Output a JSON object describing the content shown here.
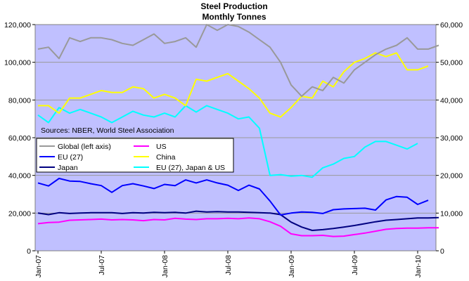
{
  "chart_data": {
    "type": "line",
    "title": "Steel Production",
    "subtitle": "Monthly Tonnes",
    "annotation": "Sources: NBER, World Steel Association",
    "grid": true,
    "left_axis": {
      "ylim": [
        0,
        120000
      ],
      "ticks": [
        "0",
        "20,000",
        "40,000",
        "60,000",
        "80,000",
        "100,000",
        "120,000"
      ]
    },
    "right_axis": {
      "ylim": [
        0,
        60000
      ],
      "ticks": [
        "0",
        "10,000",
        "20,000",
        "30,000",
        "40,000",
        "50,000",
        "60,000"
      ]
    },
    "x_tick_labels": [
      "Jan-07",
      "Jul-07",
      "Jan-08",
      "Jul-08",
      "Jan-09",
      "Jul-09",
      "Jan-10"
    ],
    "x_tick_months": [
      0,
      6,
      12,
      18,
      24,
      30,
      36
    ],
    "x_range_months": [
      0,
      36
    ],
    "background_color": "#c0c0ff",
    "series": [
      {
        "name": "Global (left axis)",
        "axis": "left",
        "color": "#999999",
        "values": [
          107000,
          108000,
          102000,
          113000,
          111000,
          113000,
          113000,
          112000,
          110000,
          109000,
          112000,
          115000,
          110000,
          111000,
          113000,
          108000,
          120000,
          117000,
          120000,
          119000,
          116000,
          112000,
          108000,
          100000,
          88000,
          82000,
          87000,
          85000,
          92000,
          89000,
          96000,
          100000,
          104000,
          107000,
          109000,
          113000,
          107000,
          107000,
          109000
        ]
      },
      {
        "name": "US",
        "axis": "right",
        "color": "#ff00ff",
        "values": [
          7200,
          7500,
          7600,
          8100,
          8200,
          8300,
          8400,
          8200,
          8300,
          8200,
          8000,
          8300,
          8200,
          8600,
          8400,
          8300,
          8500,
          8500,
          8600,
          8500,
          8700,
          8500,
          7700,
          6500,
          4500,
          4000,
          4000,
          4100,
          3800,
          3900,
          4300,
          4700,
          5200,
          5700,
          5900,
          6000,
          6000,
          6100,
          6100
        ]
      },
      {
        "name": "EU (27)",
        "axis": "right",
        "color": "#0000ff",
        "values": [
          18000,
          17200,
          19200,
          18500,
          18400,
          17800,
          17300,
          15500,
          17300,
          17800,
          17200,
          16500,
          17600,
          17300,
          18800,
          18000,
          18800,
          18000,
          17400,
          16000,
          17400,
          16400,
          13200,
          9500,
          10000,
          10300,
          10200,
          9900,
          10900,
          11100,
          11200,
          11300,
          10800,
          13500,
          14400,
          14200,
          12300,
          13400
        ]
      },
      {
        "name": "China",
        "axis": "right",
        "color": "#ffff00",
        "values": [
          38500,
          38500,
          36500,
          40500,
          40500,
          41500,
          42500,
          42000,
          42000,
          43500,
          43000,
          40500,
          41500,
          40500,
          38500,
          45500,
          45000,
          46000,
          47000,
          45000,
          43000,
          40500,
          36500,
          35500,
          38000,
          41000,
          40500,
          45000,
          43500,
          47500,
          50000,
          51000,
          52500,
          51500,
          52500,
          48000,
          48000,
          49000
        ]
      },
      {
        "name": "Japan",
        "axis": "right",
        "color": "#000080",
        "values": [
          10000,
          9600,
          10100,
          9900,
          10000,
          10100,
          10100,
          10100,
          9900,
          10100,
          10000,
          10200,
          10100,
          10200,
          10000,
          10500,
          10300,
          10400,
          10300,
          10300,
          10200,
          10100,
          10000,
          9600,
          7600,
          6300,
          5400,
          5600,
          5900,
          6300,
          6700,
          7200,
          7700,
          8100,
          8300,
          8500,
          8700,
          8700,
          8800
        ]
      },
      {
        "name": "EU (27), Japan & US",
        "axis": "right",
        "color": "#00ffff",
        "values": [
          36000,
          34000,
          38000,
          36500,
          37500,
          36500,
          35500,
          34000,
          35500,
          37000,
          36000,
          35500,
          36500,
          35500,
          38500,
          36800,
          38500,
          37500,
          36500,
          35000,
          35500,
          32500,
          20000,
          20200,
          19800,
          20000,
          19500,
          22000,
          23000,
          24500,
          25000,
          27500,
          29000,
          29000,
          28000,
          27000,
          28500
        ]
      }
    ],
    "legend": {
      "placement": "middle-left",
      "entries": [
        {
          "label": "Global (left axis)",
          "color": "#999999"
        },
        {
          "label": "US",
          "color": "#ff00ff"
        },
        {
          "label": "EU (27)",
          "color": "#0000ff"
        },
        {
          "label": "China",
          "color": "#ffff00"
        },
        {
          "label": "Japan",
          "color": "#000080"
        },
        {
          "label": "EU (27), Japan & US",
          "color": "#00ffff"
        }
      ]
    }
  }
}
